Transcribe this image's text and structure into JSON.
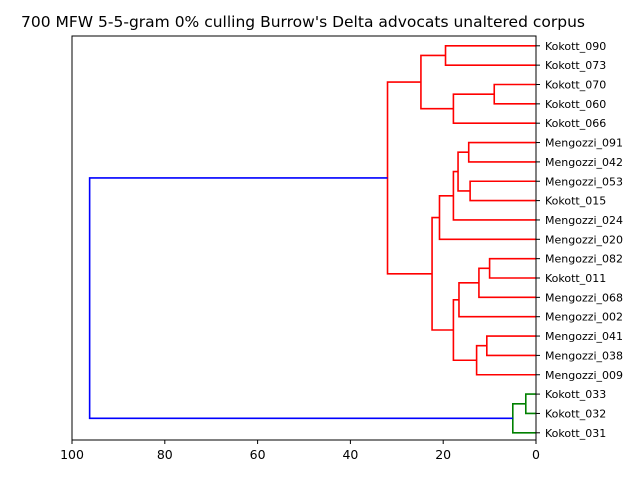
{
  "chart_data": {
    "type": "dendrogram",
    "title": "700 MFW 5-5-gram 0% culling Burrow's Delta advocats unaltered corpus",
    "orientation": "right",
    "xlim": [
      100,
      0
    ],
    "x_ticks": [
      100,
      80,
      60,
      40,
      20,
      0
    ],
    "leaves": [
      "Kokott_090",
      "Kokott_073",
      "Kokott_070",
      "Kokott_060",
      "Kokott_066",
      "Mengozzi_091",
      "Mengozzi_042",
      "Mengozzi_053",
      "Kokott_015",
      "Mengozzi_024",
      "Mengozzi_020",
      "Mengozzi_082",
      "Kokott_011",
      "Mengozzi_068",
      "Mengozzi_002",
      "Mengozzi_041",
      "Mengozzi_038",
      "Mengozzi_009",
      "Kokott_033",
      "Kokott_032",
      "Kokott_031"
    ],
    "colors": {
      "cluster_a": "#ff0000",
      "cluster_b": "#008000",
      "root": "#0000ff"
    },
    "merges": [
      {
        "id": "m1",
        "children": [
          "Kokott_090",
          "Kokott_073"
        ],
        "height": 19.5,
        "color": "#ff0000"
      },
      {
        "id": "m2",
        "children": [
          "Kokott_070",
          "Kokott_060"
        ],
        "height": 9.0,
        "color": "#ff0000"
      },
      {
        "id": "m3",
        "children": [
          "m2",
          "Kokott_066"
        ],
        "height": 17.8,
        "color": "#ff0000"
      },
      {
        "id": "m4",
        "children": [
          "m1",
          "m3"
        ],
        "height": 24.8,
        "color": "#ff0000"
      },
      {
        "id": "m5",
        "children": [
          "Mengozzi_091",
          "Mengozzi_042"
        ],
        "height": 14.5,
        "color": "#ff0000"
      },
      {
        "id": "m6",
        "children": [
          "Mengozzi_053",
          "Kokott_015"
        ],
        "height": 14.2,
        "color": "#ff0000"
      },
      {
        "id": "m7",
        "children": [
          "m5",
          "m6"
        ],
        "height": 16.8,
        "color": "#ff0000"
      },
      {
        "id": "m8",
        "children": [
          "m7",
          "Mengozzi_024"
        ],
        "height": 17.8,
        "color": "#ff0000"
      },
      {
        "id": "m9",
        "children": [
          "m8",
          "Mengozzi_020"
        ],
        "height": 20.8,
        "color": "#ff0000"
      },
      {
        "id": "m10",
        "children": [
          "Mengozzi_082",
          "Kokott_011"
        ],
        "height": 10.0,
        "color": "#ff0000"
      },
      {
        "id": "m11",
        "children": [
          "m10",
          "Mengozzi_068"
        ],
        "height": 12.3,
        "color": "#ff0000"
      },
      {
        "id": "m12",
        "children": [
          "m11",
          "Mengozzi_002"
        ],
        "height": 16.6,
        "color": "#ff0000"
      },
      {
        "id": "m13",
        "children": [
          "Mengozzi_041",
          "Mengozzi_038"
        ],
        "height": 10.6,
        "color": "#ff0000"
      },
      {
        "id": "m14",
        "children": [
          "m13",
          "Mengozzi_009"
        ],
        "height": 12.8,
        "color": "#ff0000"
      },
      {
        "id": "m15",
        "children": [
          "m12",
          "m14"
        ],
        "height": 17.8,
        "color": "#ff0000"
      },
      {
        "id": "m16",
        "children": [
          "m9",
          "m15"
        ],
        "height": 22.4,
        "color": "#ff0000"
      },
      {
        "id": "m17",
        "children": [
          "m4",
          "m16"
        ],
        "height": 32.0,
        "color": "#ff0000"
      },
      {
        "id": "m18",
        "children": [
          "Kokott_033",
          "Kokott_032"
        ],
        "height": 2.2,
        "color": "#008000"
      },
      {
        "id": "m19",
        "children": [
          "m18",
          "Kokott_031"
        ],
        "height": 5.0,
        "color": "#008000"
      },
      {
        "id": "m20",
        "children": [
          "m17",
          "m19"
        ],
        "height": 96.2,
        "color": "#0000ff"
      }
    ],
    "grid": false,
    "legend": "none"
  }
}
